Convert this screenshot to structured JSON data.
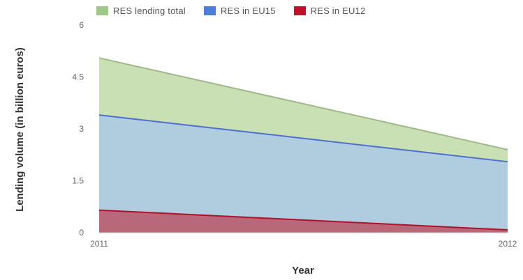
{
  "chart_data": {
    "type": "area",
    "title": "",
    "xlabel": "Year",
    "ylabel": "Lending volume (in billion euros)",
    "x": [
      "2011",
      "2012"
    ],
    "ylim": [
      0,
      6
    ],
    "yticks": [
      "0",
      "1.5",
      "3",
      "4.5",
      "6"
    ],
    "grid": false,
    "legend_position": "top",
    "series": [
      {
        "name": "RES lending total",
        "values": [
          5.05,
          2.4
        ],
        "color": "#c9dfb4",
        "line": "#9fb98a"
      },
      {
        "name": "RES in EU15",
        "values": [
          3.4,
          2.05
        ],
        "color": "#b0cde0",
        "line": "#4d6fce"
      },
      {
        "name": "RES in EU12",
        "values": [
          0.65,
          0.08
        ],
        "color": "#b86878",
        "line": "#b0102a"
      }
    ],
    "legend_swatches": [
      "#9dc88a",
      "#4d7ed6",
      "#c0102c"
    ]
  }
}
